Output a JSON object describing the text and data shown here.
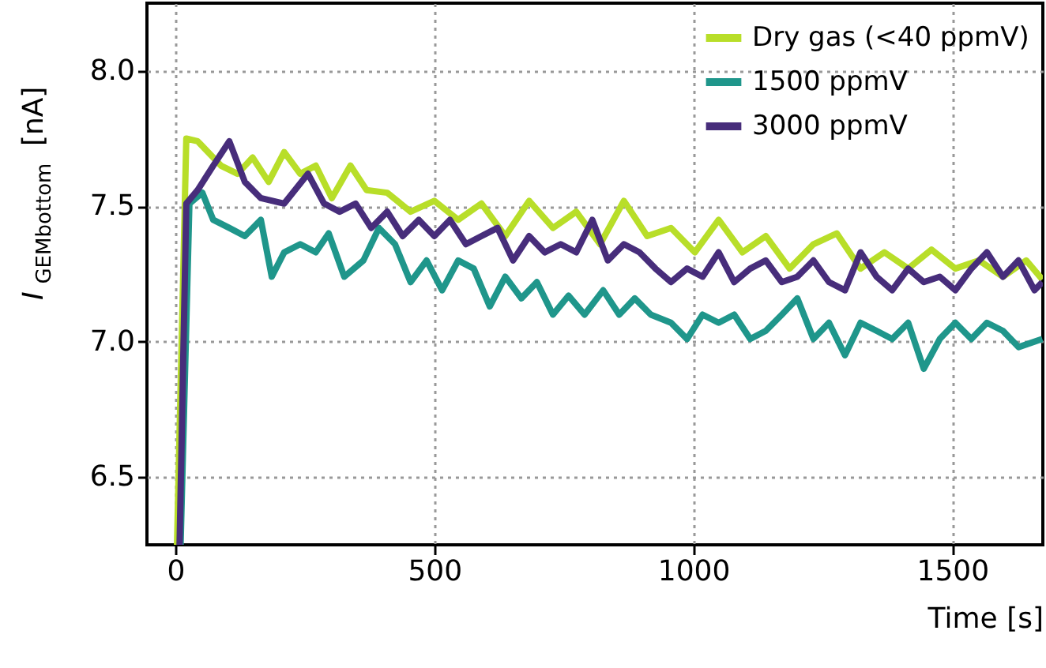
{
  "chart_data": {
    "type": "line",
    "xlabel": "Time [s]",
    "ylabel": "I$_{GEMbottom}$ [nA]",
    "xlim": [
      -55,
      1675
    ],
    "ylim": [
      6.25,
      8.25
    ],
    "xticks": [
      0,
      500,
      1000,
      1500
    ],
    "yticks": [
      6.5,
      {
        "value": 7,
        "label": "7.0"
      },
      7.5,
      {
        "value": 8,
        "label": "8.0"
      }
    ],
    "grid": true,
    "legend": "top right",
    "marker": "none",
    "line_style": "solid",
    "series": [
      {
        "name": "Dry gas (<40 ppmV)",
        "color": "#b8de29",
        "x": [
          3,
          21,
          43,
          88,
          120,
          149,
          180,
          210,
          241,
          271,
          302,
          338,
          369,
          409,
          454,
          500,
          546,
          591,
          637,
          683,
          729,
          774,
          820,
          866,
          911,
          957,
          1003,
          1049,
          1095,
          1140,
          1186,
          1232,
          1277,
          1323,
          1369,
          1415,
          1460,
          1506,
          1552,
          1598,
          1643,
          1674
        ],
        "values": [
          6.25,
          7.75,
          7.74,
          7.65,
          7.62,
          7.68,
          7.59,
          7.7,
          7.62,
          7.65,
          7.53,
          7.65,
          7.56,
          7.55,
          7.48,
          7.52,
          7.45,
          7.51,
          7.39,
          7.52,
          7.42,
          7.48,
          7.36,
          7.52,
          7.39,
          7.42,
          7.33,
          7.45,
          7.33,
          7.39,
          7.27,
          7.36,
          7.4,
          7.27,
          7.33,
          7.27,
          7.34,
          7.27,
          7.3,
          7.24,
          7.3,
          7.23
        ]
      },
      {
        "name": "1500 ppmV",
        "color": "#1f968b",
        "x": [
          10,
          27,
          52,
          73,
          104,
          134,
          165,
          186,
          210,
          241,
          271,
          296,
          326,
          363,
          393,
          424,
          454,
          485,
          515,
          546,
          576,
          607,
          637,
          668,
          698,
          729,
          759,
          790,
          826,
          857,
          887,
          918,
          957,
          988,
          1018,
          1049,
          1079,
          1110,
          1140,
          1171,
          1201,
          1232,
          1262,
          1293,
          1323,
          1354,
          1384,
          1415,
          1445,
          1476,
          1506,
          1537,
          1567,
          1598,
          1628,
          1674
        ],
        "values": [
          6.25,
          7.51,
          7.55,
          7.45,
          7.42,
          7.39,
          7.45,
          7.24,
          7.33,
          7.36,
          7.33,
          7.4,
          7.24,
          7.3,
          7.42,
          7.36,
          7.22,
          7.3,
          7.19,
          7.3,
          7.27,
          7.13,
          7.24,
          7.16,
          7.22,
          7.1,
          7.17,
          7.1,
          7.19,
          7.1,
          7.16,
          7.1,
          7.07,
          7.01,
          7.1,
          7.07,
          7.1,
          7.01,
          7.04,
          7.1,
          7.16,
          7.01,
          7.07,
          6.95,
          7.07,
          7.04,
          7.01,
          7.07,
          6.9,
          7.01,
          7.07,
          7.01,
          7.07,
          7.04,
          6.98,
          7.01
        ]
      },
      {
        "name": "3000 ppmV",
        "color": "#472d7b",
        "x": [
          8,
          21,
          43,
          73,
          104,
          134,
          165,
          210,
          256,
          287,
          317,
          348,
          378,
          409,
          439,
          470,
          500,
          530,
          561,
          591,
          622,
          652,
          683,
          713,
          744,
          774,
          805,
          835,
          866,
          896,
          927,
          957,
          988,
          1018,
          1049,
          1079,
          1110,
          1140,
          1171,
          1201,
          1232,
          1262,
          1293,
          1323,
          1354,
          1384,
          1415,
          1445,
          1476,
          1506,
          1537,
          1567,
          1598,
          1628,
          1659,
          1674
        ],
        "values": [
          6.25,
          7.51,
          7.56,
          7.65,
          7.74,
          7.59,
          7.53,
          7.51,
          7.62,
          7.51,
          7.48,
          7.51,
          7.42,
          7.48,
          7.39,
          7.45,
          7.39,
          7.45,
          7.36,
          7.39,
          7.42,
          7.3,
          7.39,
          7.33,
          7.36,
          7.33,
          7.45,
          7.3,
          7.36,
          7.33,
          7.27,
          7.22,
          7.27,
          7.24,
          7.33,
          7.22,
          7.27,
          7.3,
          7.22,
          7.24,
          7.3,
          7.22,
          7.19,
          7.33,
          7.24,
          7.19,
          7.27,
          7.22,
          7.24,
          7.19,
          7.27,
          7.33,
          7.24,
          7.3,
          7.19,
          7.22
        ]
      }
    ]
  }
}
